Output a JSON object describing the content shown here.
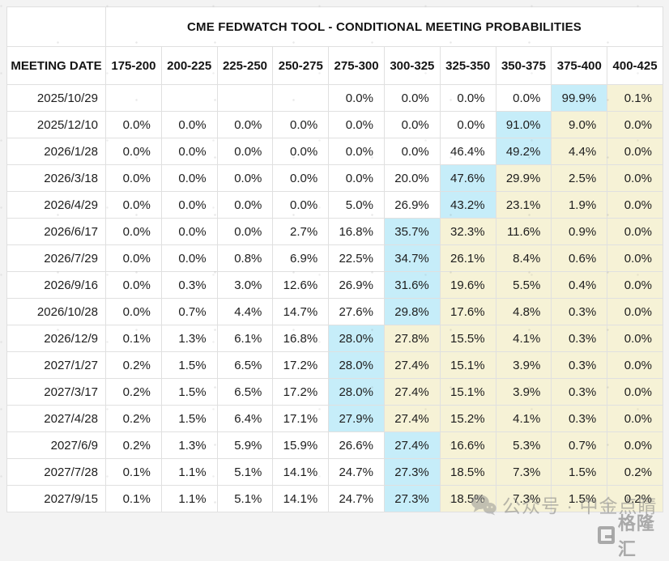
{
  "chart_data": {
    "type": "table",
    "title": "CME FEDWATCH TOOL - CONDITIONAL MEETING PROBABILITIES",
    "row_header": "MEETING DATE",
    "columns": [
      "175-200",
      "200-225",
      "225-250",
      "250-275",
      "275-300",
      "300-325",
      "325-350",
      "350-375",
      "375-400",
      "400-425"
    ],
    "highlight_rule": "cell at peak_index has cyan background; every cell to the right of it has pale-yellow background",
    "rows": [
      {
        "date": "2025/10/29",
        "values": [
          "",
          "",
          "",
          "",
          "0.0%",
          "0.0%",
          "0.0%",
          "0.0%",
          "99.9%",
          "0.1%"
        ],
        "peak_index": 8
      },
      {
        "date": "2025/12/10",
        "values": [
          "0.0%",
          "0.0%",
          "0.0%",
          "0.0%",
          "0.0%",
          "0.0%",
          "0.0%",
          "91.0%",
          "9.0%",
          "0.0%"
        ],
        "peak_index": 7
      },
      {
        "date": "2026/1/28",
        "values": [
          "0.0%",
          "0.0%",
          "0.0%",
          "0.0%",
          "0.0%",
          "0.0%",
          "46.4%",
          "49.2%",
          "4.4%",
          "0.0%"
        ],
        "peak_index": 7
      },
      {
        "date": "2026/3/18",
        "values": [
          "0.0%",
          "0.0%",
          "0.0%",
          "0.0%",
          "0.0%",
          "20.0%",
          "47.6%",
          "29.9%",
          "2.5%",
          "0.0%"
        ],
        "peak_index": 6
      },
      {
        "date": "2026/4/29",
        "values": [
          "0.0%",
          "0.0%",
          "0.0%",
          "0.0%",
          "5.0%",
          "26.9%",
          "43.2%",
          "23.1%",
          "1.9%",
          "0.0%"
        ],
        "peak_index": 6
      },
      {
        "date": "2026/6/17",
        "values": [
          "0.0%",
          "0.0%",
          "0.0%",
          "2.7%",
          "16.8%",
          "35.7%",
          "32.3%",
          "11.6%",
          "0.9%",
          "0.0%"
        ],
        "peak_index": 5
      },
      {
        "date": "2026/7/29",
        "values": [
          "0.0%",
          "0.0%",
          "0.8%",
          "6.9%",
          "22.5%",
          "34.7%",
          "26.1%",
          "8.4%",
          "0.6%",
          "0.0%"
        ],
        "peak_index": 5
      },
      {
        "date": "2026/9/16",
        "values": [
          "0.0%",
          "0.3%",
          "3.0%",
          "12.6%",
          "26.9%",
          "31.6%",
          "19.6%",
          "5.5%",
          "0.4%",
          "0.0%"
        ],
        "peak_index": 5
      },
      {
        "date": "2026/10/28",
        "values": [
          "0.0%",
          "0.7%",
          "4.4%",
          "14.7%",
          "27.6%",
          "29.8%",
          "17.6%",
          "4.8%",
          "0.3%",
          "0.0%"
        ],
        "peak_index": 5
      },
      {
        "date": "2026/12/9",
        "values": [
          "0.1%",
          "1.3%",
          "6.1%",
          "16.8%",
          "28.0%",
          "27.8%",
          "15.5%",
          "4.1%",
          "0.3%",
          "0.0%"
        ],
        "peak_index": 4
      },
      {
        "date": "2027/1/27",
        "values": [
          "0.2%",
          "1.5%",
          "6.5%",
          "17.2%",
          "28.0%",
          "27.4%",
          "15.1%",
          "3.9%",
          "0.3%",
          "0.0%"
        ],
        "peak_index": 4
      },
      {
        "date": "2027/3/17",
        "values": [
          "0.2%",
          "1.5%",
          "6.5%",
          "17.2%",
          "28.0%",
          "27.4%",
          "15.1%",
          "3.9%",
          "0.3%",
          "0.0%"
        ],
        "peak_index": 4
      },
      {
        "date": "2027/4/28",
        "values": [
          "0.2%",
          "1.5%",
          "6.4%",
          "17.1%",
          "27.9%",
          "27.4%",
          "15.2%",
          "4.1%",
          "0.3%",
          "0.0%"
        ],
        "peak_index": 4
      },
      {
        "date": "2027/6/9",
        "values": [
          "0.2%",
          "1.3%",
          "5.9%",
          "15.9%",
          "26.6%",
          "27.4%",
          "16.6%",
          "5.3%",
          "0.7%",
          "0.0%"
        ],
        "peak_index": 5
      },
      {
        "date": "2027/7/28",
        "values": [
          "0.1%",
          "1.1%",
          "5.1%",
          "14.1%",
          "24.7%",
          "27.3%",
          "18.5%",
          "7.3%",
          "1.5%",
          "0.2%"
        ],
        "peak_index": 5
      },
      {
        "date": "2027/9/15",
        "values": [
          "0.1%",
          "1.1%",
          "5.1%",
          "14.1%",
          "24.7%",
          "27.3%",
          "18.5%",
          "7.3%",
          "1.5%",
          "0.2%"
        ],
        "peak_index": 5
      }
    ]
  },
  "colors": {
    "peak_highlight": "#c6edf9",
    "tail_highlight": "#f6f2d6",
    "table_border": "#e0e0e0",
    "page_background": "#f3f3f3",
    "text": "#1d1d1d"
  },
  "watermarks": {
    "wechat_text": "公众号 · 中金点睛",
    "gelonghui_text": "格隆汇"
  }
}
